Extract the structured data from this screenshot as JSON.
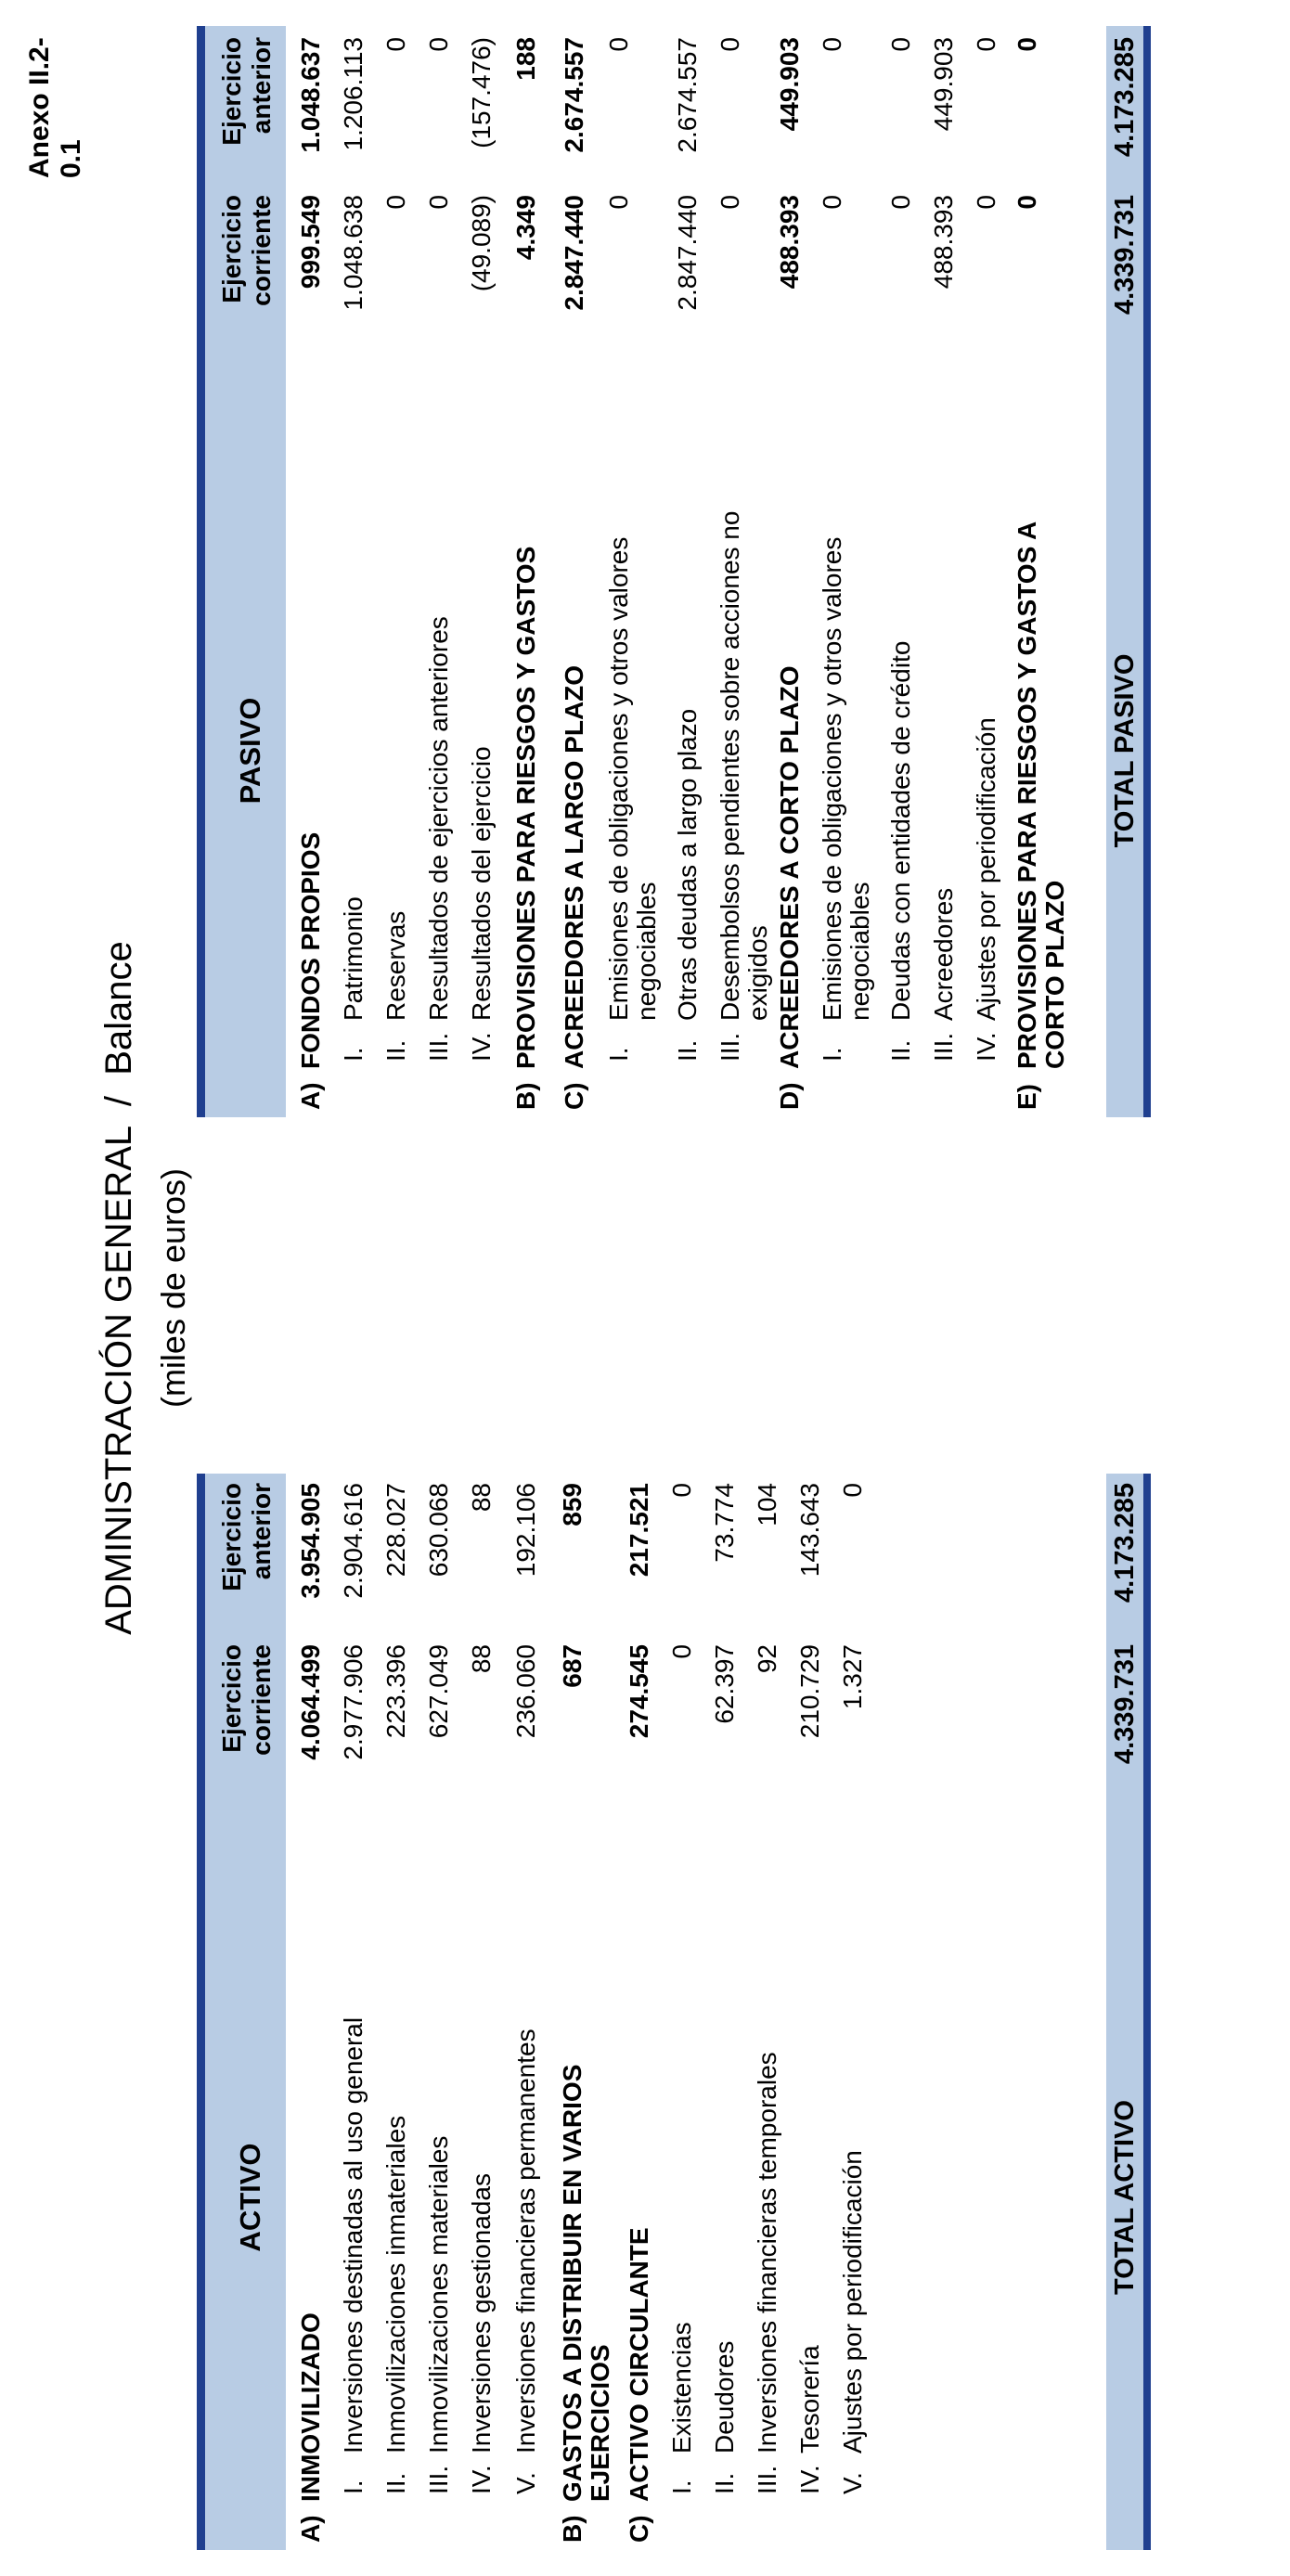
{
  "annex": "Anexo II.2-0.1",
  "title": "ADMINISTRACIÓN GENERAL  /  Balance",
  "subtitle": "(miles de euros)",
  "activo": {
    "header": "ACTIVO",
    "col1": [
      "Ejercicio",
      "corriente"
    ],
    "col2": [
      "Ejercicio",
      "anterior"
    ],
    "rows": [
      {
        "letter": "A)",
        "roman": "",
        "label": "INMOVILIZADO",
        "v1": "4.064.499",
        "v2": "3.954.905",
        "bold": true
      },
      {
        "letter": "",
        "roman": "I.",
        "label": "Inversiones destinadas al uso general",
        "v1": "2.977.906",
        "v2": "2.904.616",
        "bold": false
      },
      {
        "letter": "",
        "roman": "II.",
        "label": "Inmovilizaciones inmateriales",
        "v1": "223.396",
        "v2": "228.027",
        "bold": false
      },
      {
        "letter": "",
        "roman": "III.",
        "label": "Inmovilizaciones materiales",
        "v1": "627.049",
        "v2": "630.068",
        "bold": false
      },
      {
        "letter": "",
        "roman": "IV.",
        "label": "Inversiones gestionadas",
        "v1": "88",
        "v2": "88",
        "bold": false
      },
      {
        "letter": "",
        "roman": "V.",
        "label": "Inversiones financieras permanentes",
        "v1": "236.060",
        "v2": "192.106",
        "bold": false
      },
      {
        "letter": "B)",
        "roman": "",
        "label": "GASTOS  A  DISTRIBUIR  EN  VARIOS",
        "label2": "EJERCICIOS",
        "v1": "687",
        "v2": "859",
        "bold": true
      },
      {
        "letter": "C)",
        "roman": "",
        "label": "ACTIVO CIRCULANTE",
        "v1": "274.545",
        "v2": "217.521",
        "bold": true
      },
      {
        "letter": "",
        "roman": "I.",
        "label": "Existencias",
        "v1": "0",
        "v2": "0",
        "bold": false
      },
      {
        "letter": "",
        "roman": "II.",
        "label": "Deudores",
        "v1": "62.397",
        "v2": "73.774",
        "bold": false
      },
      {
        "letter": "",
        "roman": "III.",
        "label": "Inversiones financieras temporales",
        "v1": "92",
        "v2": "104",
        "bold": false
      },
      {
        "letter": "",
        "roman": "IV.",
        "label": "Tesorería",
        "v1": "210.729",
        "v2": "143.643",
        "bold": false
      },
      {
        "letter": "",
        "roman": "V.",
        "label": "Ajustes por periodificación",
        "v1": "1.327",
        "v2": "0",
        "bold": false
      }
    ],
    "total_label": "TOTAL ACTIVO",
    "total_v1": "4.339.731",
    "total_v2": "4.173.285"
  },
  "pasivo": {
    "header": "PASIVO",
    "col1": [
      "Ejercicio",
      "corriente"
    ],
    "col2": [
      "Ejercicio",
      "anterior"
    ],
    "rows": [
      {
        "letter": "A)",
        "roman": "",
        "label": "FONDOS PROPIOS",
        "v1": "999.549",
        "v2": "1.048.637",
        "bold": true
      },
      {
        "letter": "",
        "roman": "I.",
        "label": "Patrimonio",
        "v1": "1.048.638",
        "v2": "1.206.113",
        "bold": false
      },
      {
        "letter": "",
        "roman": "II.",
        "label": "Reservas",
        "v1": "0",
        "v2": "0",
        "bold": false
      },
      {
        "letter": "",
        "roman": "III.",
        "label": "Resultados de ejercicios anteriores",
        "v1": "0",
        "v2": "0",
        "bold": false
      },
      {
        "letter": "",
        "roman": "IV.",
        "label": "Resultados del ejercicio",
        "v1": "(49.089)",
        "v2": "(157.476)",
        "bold": false
      },
      {
        "letter": "B)",
        "roman": "",
        "label": "PROVISIONES PARA RIESGOS Y GASTOS",
        "v1": "4.349",
        "v2": "188",
        "bold": true
      },
      {
        "letter": "C)",
        "roman": "",
        "label": "ACREEDORES A LARGO PLAZO",
        "v1": "2.847.440",
        "v2": "2.674.557",
        "bold": true
      },
      {
        "letter": "",
        "roman": "I.",
        "label": "Emisiones de obligaciones y otros valores",
        "label2": "negociables",
        "v1": "0",
        "v2": "0",
        "bold": false
      },
      {
        "letter": "",
        "roman": "II.",
        "label": "Otras deudas a largo plazo",
        "v1": "2.847.440",
        "v2": "2.674.557",
        "bold": false
      },
      {
        "letter": "",
        "roman": "III.",
        "label": "Desembolsos pendientes sobre acciones no",
        "label2": "exigidos",
        "v1": "0",
        "v2": "0",
        "bold": false
      },
      {
        "letter": "D)",
        "roman": "",
        "label": "ACREEDORES A CORTO PLAZO",
        "v1": "488.393",
        "v2": "449.903",
        "bold": true
      },
      {
        "letter": "",
        "roman": "I.",
        "label": "Emisiones de obligaciones y otros valores",
        "label2": "negociables",
        "v1": "0",
        "v2": "0",
        "bold": false
      },
      {
        "letter": "",
        "roman": "II.",
        "label": "Deudas con entidades de crédito",
        "v1": "0",
        "v2": "0",
        "bold": false
      },
      {
        "letter": "",
        "roman": "III.",
        "label": "Acreedores",
        "v1": "488.393",
        "v2": "449.903",
        "bold": false
      },
      {
        "letter": "",
        "roman": "IV.",
        "label": "Ajustes por periodificación",
        "v1": "0",
        "v2": "0",
        "bold": false
      },
      {
        "letter": "E)",
        "roman": "",
        "label": "PROVISIONES  PARA  RIESGOS  Y  GASTOS  A",
        "label2": "CORTO  PLAZO",
        "v1": "0",
        "v2": "0",
        "bold": true
      }
    ],
    "total_label": "TOTAL PASIVO",
    "total_v1": "4.339.731",
    "total_v2": "4.173.285"
  }
}
